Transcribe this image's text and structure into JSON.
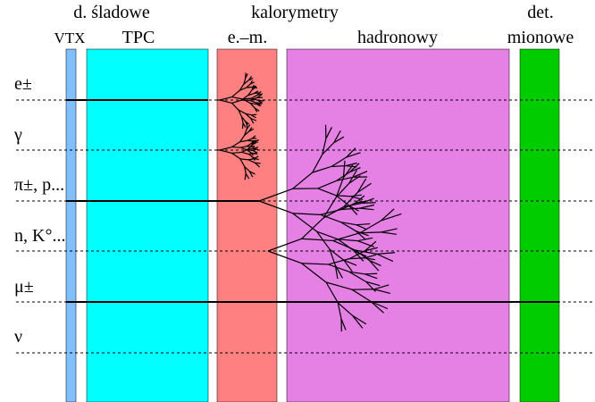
{
  "headers": [
    "d. śladowe",
    "kalorymetry",
    "det."
  ],
  "detectors": [
    "VTX",
    "TPC",
    "e.–m.",
    "hadronowy",
    "mionowe"
  ],
  "particles": [
    "e±",
    "γ",
    "π±, p...",
    "n, K°...",
    "μ±",
    "ν"
  ]
}
